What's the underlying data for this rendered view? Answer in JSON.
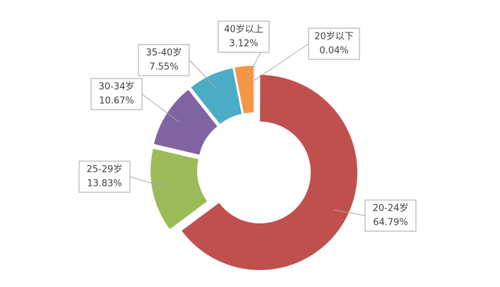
{
  "chart_data": {
    "type": "doughnut",
    "categories": [
      "20岁以下",
      "20-24岁",
      "25-29岁",
      "30-34岁",
      "35-40岁",
      "40岁以上"
    ],
    "values": [
      0.04,
      64.79,
      13.83,
      10.67,
      7.55,
      3.12
    ],
    "value_labels": [
      "0.04%",
      "64.79%",
      "13.83%",
      "10.67%",
      "7.55%",
      "3.12%"
    ],
    "colors": [
      "#4f81bd",
      "#c0504d",
      "#9bbb59",
      "#8064a2",
      "#4bacc6",
      "#f79646"
    ]
  }
}
